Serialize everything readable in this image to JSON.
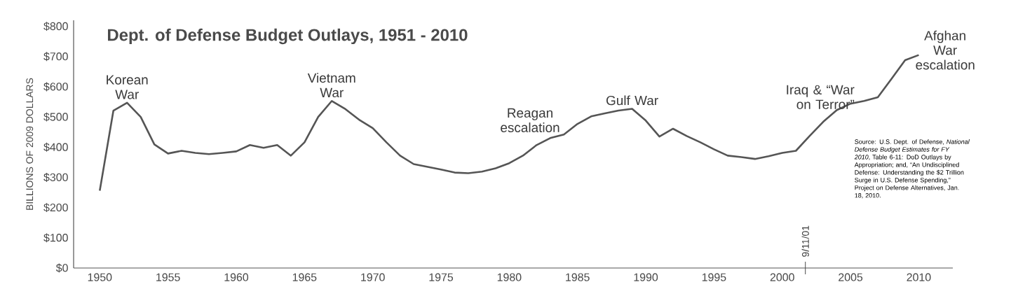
{
  "chart_data": {
    "type": "line",
    "title": "Dept. of Defense Budget Outlays, 1951 - 2010",
    "ylabel": "BILLIONS OF 2009 DOLLARS",
    "x": [
      "1950",
      "1951",
      "1952",
      "1953",
      "1954",
      "1955",
      "1956",
      "1957",
      "1958",
      "1959",
      "1960",
      "1961",
      "1962",
      "1963",
      "1964",
      "1965",
      "1966",
      "1967",
      "1968",
      "1969",
      "1970",
      "1971",
      "1972",
      "1973",
      "1974",
      "1975",
      "1976",
      "1977",
      "1978",
      "1979",
      "1980",
      "1981",
      "1982",
      "1983",
      "1984",
      "1985",
      "1986",
      "1987",
      "1988",
      "1989",
      "1990",
      "1991",
      "1992",
      "1993",
      "1994",
      "1995",
      "1996",
      "1997",
      "1998",
      "1999",
      "2000",
      "2001",
      "2002",
      "2003",
      "2004",
      "2005",
      "2006",
      "2007",
      "2008",
      "2009",
      "2010"
    ],
    "series": [
      {
        "color": "#555555",
        "values": [
          256,
          521,
          547,
          500,
          409,
          379,
          388,
          381,
          377,
          381,
          386,
          407,
          398,
          407,
          372,
          416,
          500,
          553,
          526,
          491,
          463,
          416,
          372,
          344,
          335,
          326,
          316,
          314,
          319,
          330,
          347,
          372,
          407,
          430,
          442,
          477,
          502,
          512,
          521,
          527,
          488,
          435,
          461,
          437,
          416,
          393,
          372,
          367,
          361,
          370,
          381,
          388,
          437,
          484,
          523,
          544,
          553,
          565,
          626,
          688,
          705
        ]
      }
    ],
    "xlim": [
      "1948-02",
      "2012-07"
    ],
    "ylim": [
      0,
      820
    ],
    "xticks": [
      "1950",
      "1955",
      "1960",
      "1965",
      "1970",
      "1975",
      "1980",
      "1985",
      "1990",
      "1995",
      "2000",
      "2005",
      "2010"
    ],
    "yticks": [
      {
        "value": 0,
        "label": "$0"
      },
      {
        "value": 100,
        "label": "$100"
      },
      {
        "value": 200,
        "label": "$200"
      },
      {
        "value": 300,
        "label": "$300"
      },
      {
        "value": 400,
        "label": "$400"
      },
      {
        "value": 500,
        "label": "$500"
      },
      {
        "value": 600,
        "label": "$600"
      },
      {
        "value": 700,
        "label": "$700"
      },
      {
        "value": 800,
        "label": "$800"
      }
    ],
    "ref_lines": [
      {
        "axis": "x",
        "value": "2001-09-11",
        "label": "9/11/01"
      }
    ],
    "marker": "none",
    "annotations": [
      {
        "text": "Korean War",
        "x": "1952",
        "y": 547
      },
      {
        "text": "Vietnam War",
        "x": "1967",
        "y": 553
      },
      {
        "text": "Reagan escalation",
        "x": "1984",
        "y": 442
      },
      {
        "text": "Gulf War",
        "x": "1989",
        "y": 527
      },
      {
        "text": "Iraq & “War on Terror”",
        "x": "2007",
        "y": 565
      },
      {
        "text": "Afghan War escalation",
        "x": "2010",
        "y": 705
      },
      "Source: U.S. Dept. of Defense, *National Defense Budget Estimates for FY 2010*, Table 6-11: DoD Outlays by Appropriation; and, “An Undisciplined Defense: Understanding the $2 Trillion Surge in U.S. Defense Spending,” Project on Defense Alternatives, Jan. 18, 2010."
    ]
  }
}
